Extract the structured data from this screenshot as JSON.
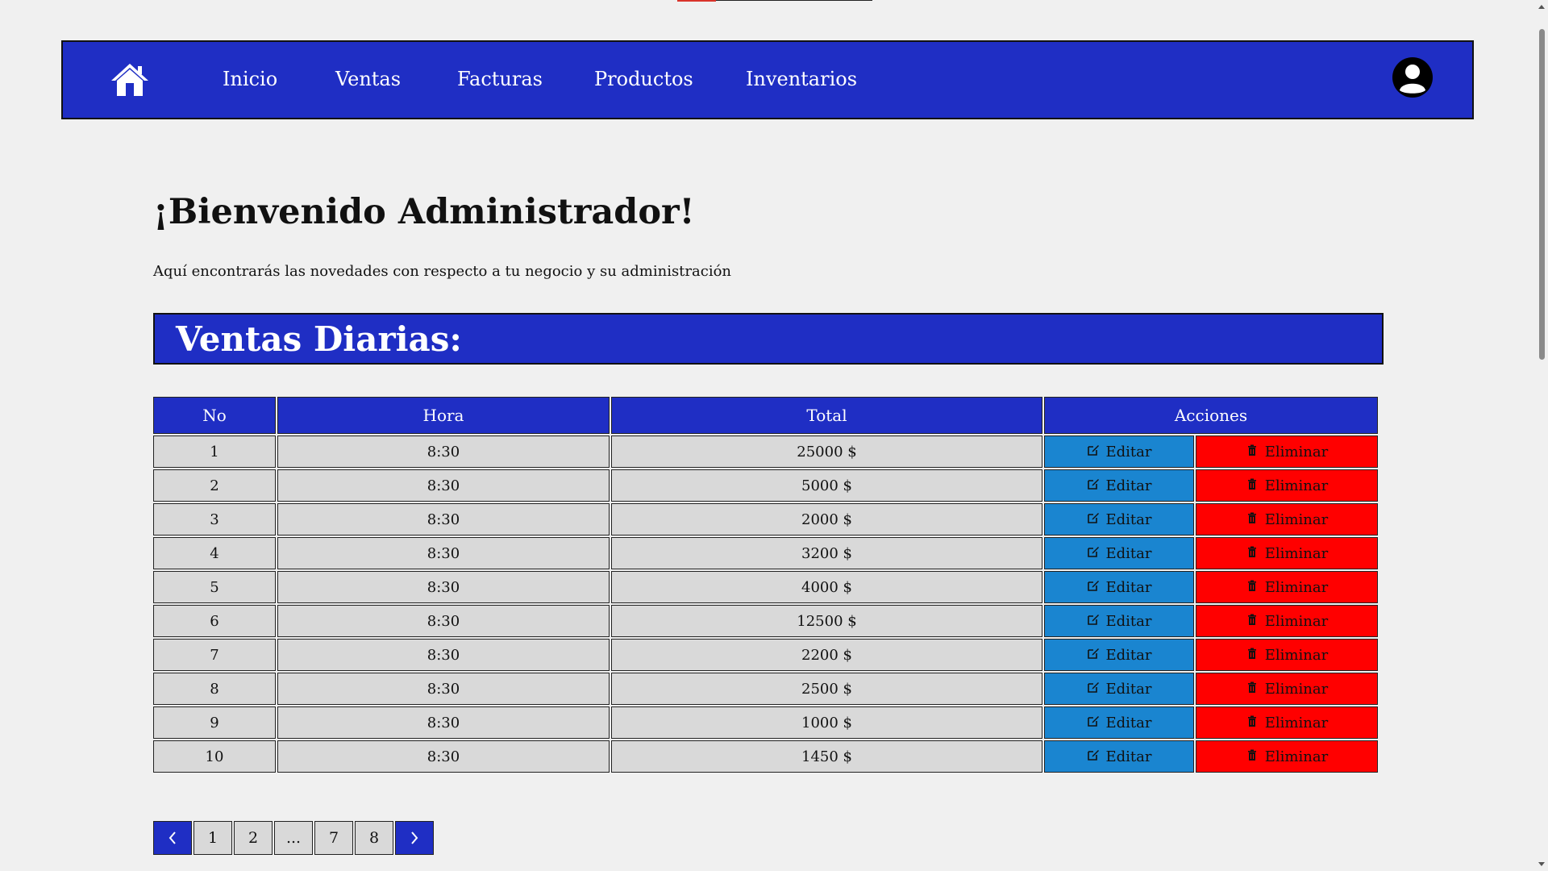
{
  "nav": {
    "home_icon": "home-icon",
    "items": [
      "Inicio",
      "Ventas",
      "Facturas",
      "Productos",
      "Inventarios"
    ],
    "avatar_icon": "user-avatar-icon"
  },
  "welcome": {
    "title": "¡Bienvenido Administrador!",
    "subtitle": "Aquí encontrarás las novedades con respecto a tu negocio y su administración"
  },
  "sales": {
    "heading": "Ventas Diarias:",
    "headers": {
      "no": "No",
      "hora": "Hora",
      "total": "Total",
      "acciones": "Acciones"
    },
    "edit_label": "Editar",
    "delete_label": "Eliminar",
    "rows": [
      {
        "no": "1",
        "hora": "8:30",
        "total": "25000 $"
      },
      {
        "no": "2",
        "hora": "8:30",
        "total": "5000 $"
      },
      {
        "no": "3",
        "hora": "8:30",
        "total": "2000 $"
      },
      {
        "no": "4",
        "hora": "8:30",
        "total": "3200 $"
      },
      {
        "no": "5",
        "hora": "8:30",
        "total": "4000 $"
      },
      {
        "no": "6",
        "hora": "8:30",
        "total": "12500 $"
      },
      {
        "no": "7",
        "hora": "8:30",
        "total": "2200 $"
      },
      {
        "no": "8",
        "hora": "8:30",
        "total": "2500 $"
      },
      {
        "no": "9",
        "hora": "8:30",
        "total": "1000 $"
      },
      {
        "no": "10",
        "hora": "8:30",
        "total": "1450 $"
      }
    ]
  },
  "pagination": {
    "pages": [
      "1",
      "2",
      "...",
      "7",
      "8"
    ]
  },
  "colors": {
    "primary": "#1f2ec4",
    "edit": "#1a85d0",
    "delete": "#ff0000",
    "cell": "#d9d9d9",
    "background": "#f0f0f0"
  }
}
